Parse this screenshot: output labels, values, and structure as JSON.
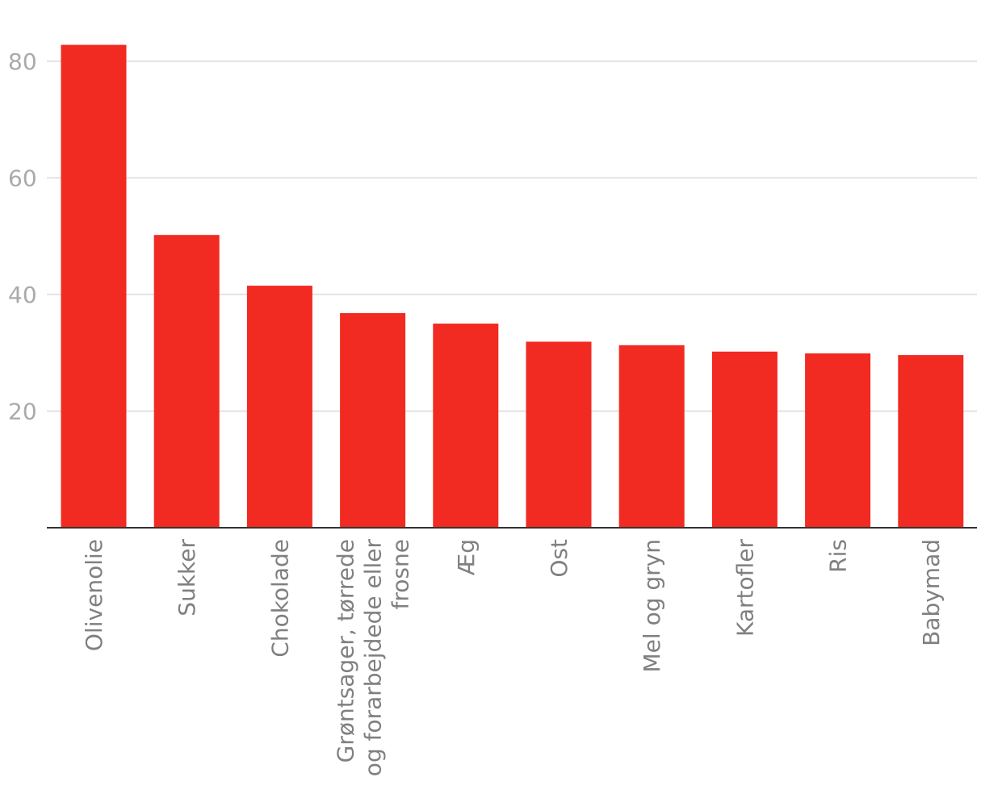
{
  "chart_data": {
    "type": "bar",
    "title": "",
    "xlabel": "",
    "ylabel": "",
    "categories": [
      [
        "Olivenolie"
      ],
      [
        "Sukker"
      ],
      [
        "Chokolade"
      ],
      [
        "Grøntsager, tørrede",
        "og forarbejdede eller",
        "frosne"
      ],
      [
        "Æg"
      ],
      [
        "Ost"
      ],
      [
        "Mel og gryn"
      ],
      [
        "Kartofler"
      ],
      [
        "Ris"
      ],
      [
        "Babymad"
      ]
    ],
    "values": [
      82.8,
      50.2,
      41.5,
      36.8,
      35.0,
      31.9,
      31.3,
      30.2,
      29.9,
      29.6
    ],
    "ylim": [
      0,
      88
    ],
    "yticks": [
      20,
      40,
      60,
      80
    ],
    "grid": true,
    "colors": {
      "bar": "#f12a22",
      "grid": "#e2e2e2",
      "axis": "#333333"
    }
  }
}
